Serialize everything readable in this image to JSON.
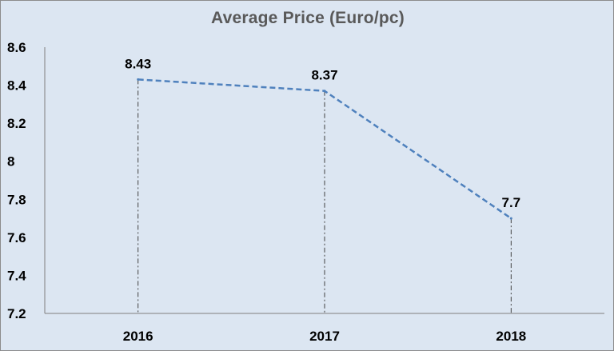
{
  "chart_data": {
    "type": "line",
    "title": "Average Price (Euro/pc)",
    "xlabel": "",
    "ylabel": "",
    "categories": [
      "2016",
      "2017",
      "2018"
    ],
    "series": [
      {
        "values": [
          8.43,
          8.37,
          7.7
        ],
        "data_labels": [
          "8.43",
          "8.37",
          "7.7"
        ],
        "line_style": "dashed",
        "color": "#4f81bd",
        "drop_lines": true
      }
    ],
    "ylim": [
      7.2,
      8.6
    ],
    "y_ticks": [
      7.2,
      7.4,
      7.6,
      7.8,
      8,
      8.2,
      8.4,
      8.6
    ],
    "y_tick_labels": [
      "7.2",
      "7.4",
      "7.6",
      "7.8",
      "8",
      "8.2",
      "8.4",
      "8.6"
    ],
    "grid": false,
    "legend": "none",
    "background_color": "#dce6f2",
    "drop_line_color": "#404040"
  }
}
